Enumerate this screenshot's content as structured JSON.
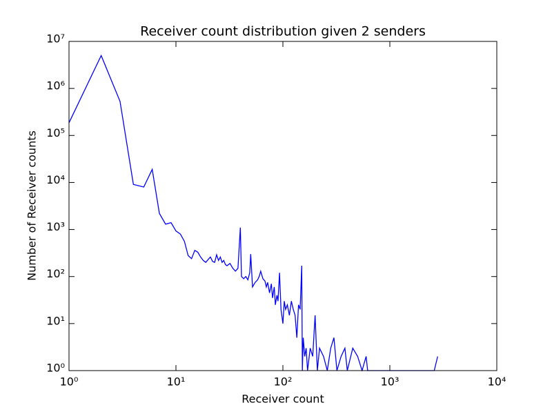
{
  "chart_data": {
    "type": "line",
    "title": "Receiver count distribution given 2 senders",
    "x_label": "Receiver count",
    "y_label": "Number of Receiver counts",
    "x_scale": "log",
    "y_scale": "log",
    "xlim": [
      1,
      10000
    ],
    "ylim": [
      1,
      10000000
    ],
    "xticks": [
      {
        "value": 1,
        "label": "10⁰"
      },
      {
        "value": 10,
        "label": "10¹"
      },
      {
        "value": 100,
        "label": "10²"
      },
      {
        "value": 1000,
        "label": "10³"
      },
      {
        "value": 10000,
        "label": "10⁴"
      }
    ],
    "yticks": [
      {
        "value": 1,
        "label": "10⁰"
      },
      {
        "value": 10,
        "label": "10¹"
      },
      {
        "value": 100,
        "label": "10²"
      },
      {
        "value": 1000,
        "label": "10³"
      },
      {
        "value": 10000,
        "label": "10⁴"
      },
      {
        "value": 100000,
        "label": "10⁵"
      },
      {
        "value": 1000000,
        "label": "10⁶"
      },
      {
        "value": 10000000,
        "label": "10⁷"
      }
    ],
    "x": [
      1,
      2,
      3,
      4,
      5,
      6,
      7,
      8,
      9,
      10,
      11,
      12,
      13,
      14,
      15,
      16,
      17,
      18,
      19,
      20,
      21,
      22,
      23,
      24,
      25,
      26,
      27,
      28,
      29,
      30,
      32,
      34,
      36,
      38,
      40,
      41,
      43,
      45,
      47,
      49,
      50,
      52,
      55,
      58,
      60,
      62,
      65,
      68,
      70,
      72,
      75,
      78,
      80,
      83,
      85,
      88,
      90,
      93,
      96,
      100,
      103,
      106,
      110,
      115,
      120,
      125,
      130,
      135,
      140,
      145,
      150,
      152,
      155,
      160,
      165,
      170,
      180,
      190,
      200,
      210,
      220,
      240,
      260,
      280,
      300,
      320,
      350,
      380,
      400,
      450,
      500,
      550,
      600,
      620,
      2600,
      2800
    ],
    "series": [
      {
        "color": "#0000ff",
        "values": [
          186000,
          5000000,
          530000,
          9100,
          8000,
          19000,
          2200,
          1300,
          1400,
          930,
          800,
          560,
          280,
          240,
          360,
          330,
          260,
          220,
          200,
          230,
          260,
          210,
          200,
          290,
          220,
          260,
          200,
          220,
          180,
          170,
          190,
          150,
          130,
          150,
          1100,
          100,
          90,
          100,
          85,
          120,
          300,
          60,
          75,
          85,
          100,
          130,
          90,
          80,
          60,
          75,
          45,
          70,
          35,
          60,
          25,
          40,
          30,
          120,
          20,
          10,
          30,
          20,
          25,
          15,
          30,
          20,
          15,
          5,
          25,
          20,
          170,
          1,
          5,
          2,
          3,
          1,
          3,
          2,
          15,
          1,
          3,
          2,
          1,
          3,
          5,
          1,
          2,
          3,
          1,
          3,
          2,
          1,
          2,
          1,
          1,
          2
        ]
      }
    ]
  }
}
